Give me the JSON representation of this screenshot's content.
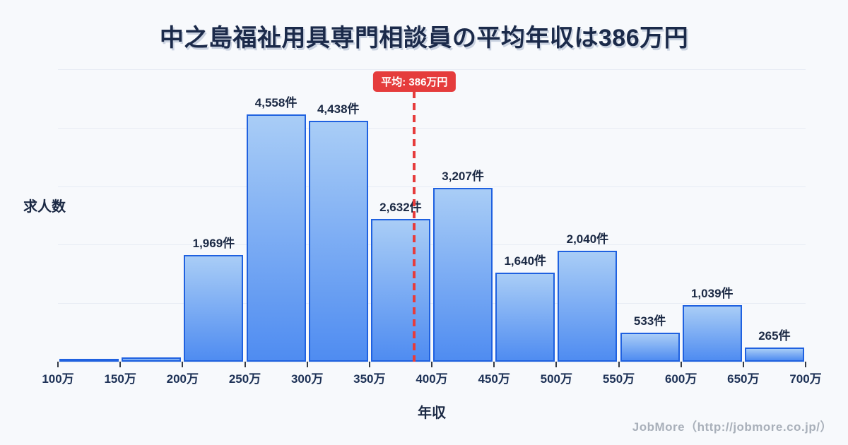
{
  "title": "中之島福祉用具専門相談員の平均年収は386万円",
  "axes": {
    "y_label": "求人数",
    "x_label": "年収"
  },
  "mean_annotation": {
    "label": "平均: 386万円",
    "value_man_yen": 386
  },
  "footer": {
    "credit": "JobMore（http://jobmore.co.jp/）"
  },
  "colors": {
    "background": "#f7f9fc",
    "bar_fill_top": "#a9cdf6",
    "bar_fill_bottom": "#4f8cf1",
    "bar_border": "#1f61e0",
    "mean_red": "#e53c3c",
    "title_navy": "#1b2a4a",
    "gridline": "#e7ecf4"
  },
  "chart_data": {
    "type": "bar",
    "title": "中之島福祉用具専門相談員の平均年収は386万円",
    "xlabel": "年収",
    "ylabel": "求人数",
    "x_tick_labels": [
      "100万",
      "150万",
      "200万",
      "250万",
      "300万",
      "350万",
      "400万",
      "450万",
      "500万",
      "550万",
      "600万",
      "650万",
      "700万"
    ],
    "bin_width_man_yen": 50,
    "x_range_man_yen": [
      100,
      700
    ],
    "values": [
      30,
      75,
      1969,
      4558,
      4438,
      2632,
      3207,
      1640,
      2040,
      533,
      1039,
      265
    ],
    "bar_labels": [
      "",
      "",
      "1,969件",
      "4,558件",
      "4,438件",
      "2,632件",
      "3,207件",
      "1,640件",
      "2,040件",
      "533件",
      "1,039件",
      "265件"
    ],
    "ylim": [
      0,
      5390
    ],
    "grid": "horizontal",
    "legend": "none",
    "mean_line": {
      "value_man_yen": 386,
      "x_fraction": 0.4767,
      "label": "平均: 386万円"
    }
  }
}
